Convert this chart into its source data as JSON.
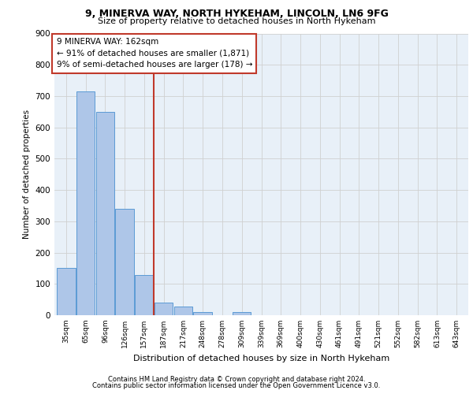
{
  "title_line1": "9, MINERVA WAY, NORTH HYKEHAM, LINCOLN, LN6 9FG",
  "title_line2": "Size of property relative to detached houses in North Hykeham",
  "xlabel": "Distribution of detached houses by size in North Hykeham",
  "ylabel": "Number of detached properties",
  "categories": [
    "35sqm",
    "65sqm",
    "96sqm",
    "126sqm",
    "157sqm",
    "187sqm",
    "217sqm",
    "248sqm",
    "278sqm",
    "309sqm",
    "339sqm",
    "369sqm",
    "400sqm",
    "430sqm",
    "461sqm",
    "491sqm",
    "521sqm",
    "552sqm",
    "582sqm",
    "613sqm",
    "643sqm"
  ],
  "values": [
    150,
    715,
    650,
    340,
    128,
    40,
    27,
    10,
    0,
    10,
    0,
    0,
    0,
    0,
    0,
    0,
    0,
    0,
    0,
    0,
    0
  ],
  "bar_color": "#aec6e8",
  "bar_edge_color": "#5b9bd5",
  "grid_color": "#d0d0d0",
  "background_color": "#e8f0f8",
  "vline_color": "#c0392b",
  "annotation_text": "9 MINERVA WAY: 162sqm\n← 91% of detached houses are smaller (1,871)\n9% of semi-detached houses are larger (178) →",
  "annotation_box_color": "#c0392b",
  "footer_line1": "Contains HM Land Registry data © Crown copyright and database right 2024.",
  "footer_line2": "Contains public sector information licensed under the Open Government Licence v3.0.",
  "ylim": [
    0,
    900
  ],
  "yticks": [
    0,
    100,
    200,
    300,
    400,
    500,
    600,
    700,
    800,
    900
  ],
  "figsize": [
    6.0,
    5.0
  ],
  "dpi": 100
}
